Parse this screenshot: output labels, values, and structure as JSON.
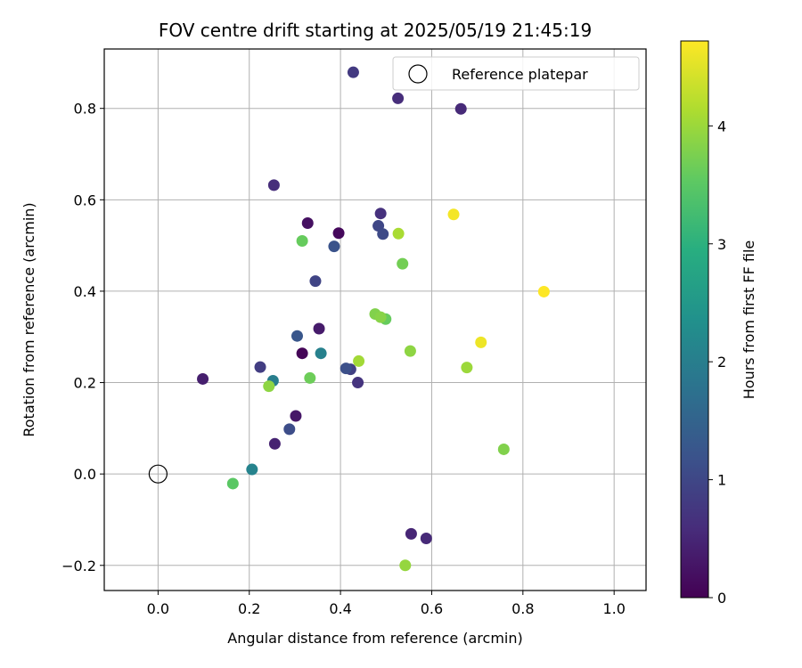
{
  "chart_data": {
    "type": "scatter",
    "title": "FOV centre drift starting at 2025/05/19 21:45:19",
    "xlabel": "Angular distance from reference (arcmin)",
    "ylabel": "Rotation from reference (arcmin)",
    "xlim": [
      -0.118,
      1.07
    ],
    "ylim": [
      -0.255,
      0.93
    ],
    "xticks": [
      0.0,
      0.2,
      0.4,
      0.6,
      0.8,
      1.0
    ],
    "xtick_labels": [
      "0.0",
      "0.2",
      "0.4",
      "0.6",
      "0.8",
      "1.0"
    ],
    "yticks": [
      -0.2,
      0.0,
      0.2,
      0.4,
      0.6,
      0.8
    ],
    "ytick_labels": [
      "−0.2",
      "0.0",
      "0.2",
      "0.4",
      "0.6",
      "0.8"
    ],
    "grid": true,
    "legend": {
      "placement": "top-right",
      "entries": [
        "Reference platepar"
      ]
    },
    "reference_point": {
      "x": 0.0,
      "y": 0.0,
      "marker": "open-circle"
    },
    "colorbar": {
      "label": "Hours from first FF file",
      "colormap": "viridis",
      "range": [
        0,
        4.72
      ],
      "ticks": [
        0,
        1,
        2,
        3,
        4
      ],
      "tick_labels": [
        "0",
        "1",
        "2",
        "3",
        "4"
      ]
    },
    "points": [
      {
        "x": 0.316,
        "y": 0.264,
        "hours": 0.05
      },
      {
        "x": 0.396,
        "y": 0.527,
        "hours": 0.1
      },
      {
        "x": 0.328,
        "y": 0.549,
        "hours": 0.2
      },
      {
        "x": 0.302,
        "y": 0.127,
        "hours": 0.3
      },
      {
        "x": 0.353,
        "y": 0.318,
        "hours": 0.35
      },
      {
        "x": 0.098,
        "y": 0.208,
        "hours": 0.4
      },
      {
        "x": 0.256,
        "y": 0.066,
        "hours": 0.45
      },
      {
        "x": 0.555,
        "y": -0.131,
        "hours": 0.5
      },
      {
        "x": 0.588,
        "y": -0.141,
        "hours": 0.55
      },
      {
        "x": 0.664,
        "y": 0.799,
        "hours": 0.55
      },
      {
        "x": 0.254,
        "y": 0.632,
        "hours": 0.6
      },
      {
        "x": 0.526,
        "y": 0.822,
        "hours": 0.6
      },
      {
        "x": 0.488,
        "y": 0.57,
        "hours": 0.65
      },
      {
        "x": 0.438,
        "y": 0.2,
        "hours": 0.7
      },
      {
        "x": 0.428,
        "y": 0.879,
        "hours": 0.8
      },
      {
        "x": 0.224,
        "y": 0.234,
        "hours": 0.85
      },
      {
        "x": 0.422,
        "y": 0.229,
        "hours": 0.9
      },
      {
        "x": 0.345,
        "y": 0.422,
        "hours": 0.95
      },
      {
        "x": 0.483,
        "y": 0.543,
        "hours": 1.0
      },
      {
        "x": 0.493,
        "y": 0.525,
        "hours": 1.05
      },
      {
        "x": 0.288,
        "y": 0.098,
        "hours": 1.1
      },
      {
        "x": 0.412,
        "y": 0.231,
        "hours": 1.15
      },
      {
        "x": 0.386,
        "y": 0.498,
        "hours": 1.2
      },
      {
        "x": 0.305,
        "y": 0.302,
        "hours": 1.25
      },
      {
        "x": 0.252,
        "y": 0.204,
        "hours": 2.0
      },
      {
        "x": 0.357,
        "y": 0.264,
        "hours": 2.05
      },
      {
        "x": 0.206,
        "y": 0.01,
        "hours": 2.1
      },
      {
        "x": 0.164,
        "y": -0.021,
        "hours": 3.5
      },
      {
        "x": 0.316,
        "y": 0.51,
        "hours": 3.6
      },
      {
        "x": 0.333,
        "y": 0.21,
        "hours": 3.65
      },
      {
        "x": 0.499,
        "y": 0.339,
        "hours": 3.6
      },
      {
        "x": 0.536,
        "y": 0.46,
        "hours": 3.7
      },
      {
        "x": 0.758,
        "y": 0.054,
        "hours": 3.8
      },
      {
        "x": 0.476,
        "y": 0.35,
        "hours": 3.8
      },
      {
        "x": 0.488,
        "y": 0.343,
        "hours": 3.85
      },
      {
        "x": 0.553,
        "y": 0.269,
        "hours": 3.9
      },
      {
        "x": 0.243,
        "y": 0.192,
        "hours": 3.9
      },
      {
        "x": 0.542,
        "y": -0.2,
        "hours": 3.95
      },
      {
        "x": 0.677,
        "y": 0.233,
        "hours": 4.0
      },
      {
        "x": 0.44,
        "y": 0.247,
        "hours": 4.05
      },
      {
        "x": 0.527,
        "y": 0.526,
        "hours": 4.1
      },
      {
        "x": 0.708,
        "y": 0.288,
        "hours": 4.6
      },
      {
        "x": 0.648,
        "y": 0.568,
        "hours": 4.65
      },
      {
        "x": 0.846,
        "y": 0.399,
        "hours": 4.72
      }
    ]
  }
}
